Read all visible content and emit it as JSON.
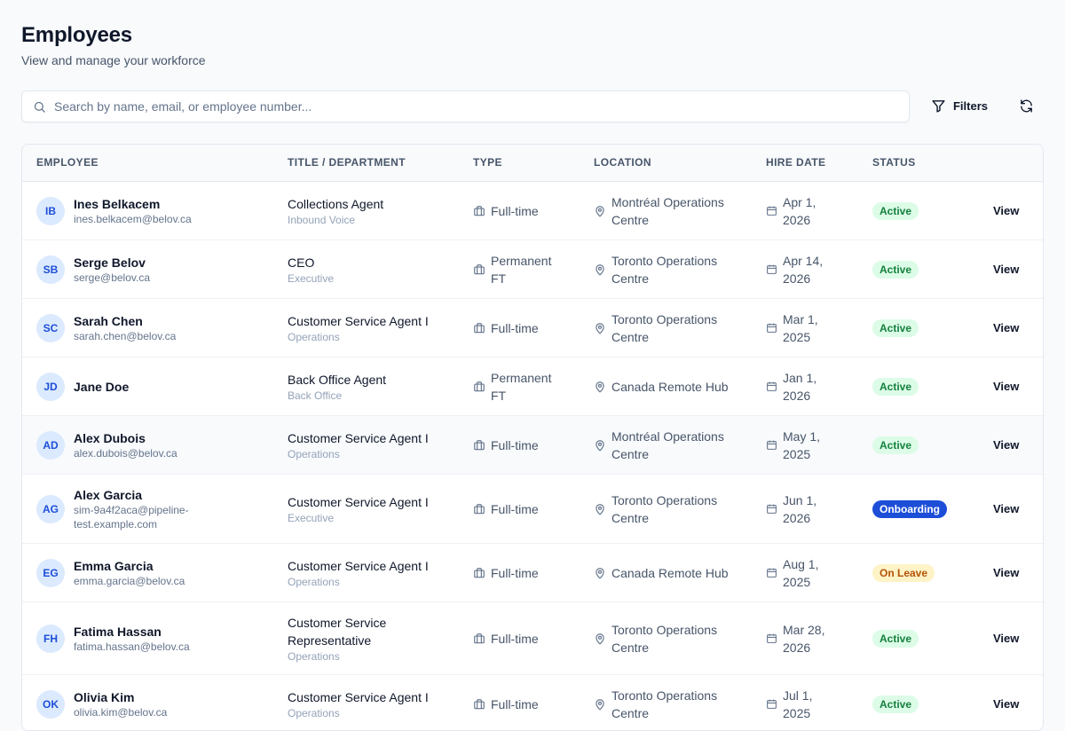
{
  "header": {
    "title": "Employees",
    "subtitle": "View and manage your workforce"
  },
  "toolbar": {
    "search_placeholder": "Search by name, email, or employee number...",
    "search_value": "",
    "filters_label": "Filters"
  },
  "table": {
    "columns": [
      "Employee",
      "Title / Department",
      "Type",
      "Location",
      "Hire Date",
      "Status"
    ],
    "view_label": "View",
    "rows": [
      {
        "initials": "IB",
        "name": "Ines Belkacem",
        "email": "ines.belkacem@belov.ca",
        "title": "Collections Agent",
        "department": "Inbound Voice",
        "type": "Full-time",
        "location": "Montréal Operations Centre",
        "hire_date": "Apr 1, 2026",
        "status": "Active",
        "status_kind": "active"
      },
      {
        "initials": "SB",
        "name": "Serge Belov",
        "email": "serge@belov.ca",
        "title": "CEO",
        "department": "Executive",
        "type": "Permanent FT",
        "location": "Toronto Operations Centre",
        "hire_date": "Apr 14, 2026",
        "status": "Active",
        "status_kind": "active"
      },
      {
        "initials": "SC",
        "name": "Sarah Chen",
        "email": "sarah.chen@belov.ca",
        "title": "Customer Service Agent I",
        "department": "Operations",
        "type": "Full-time",
        "location": "Toronto Operations Centre",
        "hire_date": "Mar 1, 2025",
        "status": "Active",
        "status_kind": "active"
      },
      {
        "initials": "JD",
        "name": "Jane Doe",
        "email": "",
        "title": "Back Office Agent",
        "department": "Back Office",
        "type": "Permanent FT",
        "location": "Canada Remote Hub",
        "hire_date": "Jan 1, 2026",
        "status": "Active",
        "status_kind": "active"
      },
      {
        "initials": "AD",
        "name": "Alex Dubois",
        "email": "alex.dubois@belov.ca",
        "title": "Customer Service Agent I",
        "department": "Operations",
        "type": "Full-time",
        "location": "Montréal Operations Centre",
        "hire_date": "May 1, 2025",
        "status": "Active",
        "status_kind": "active"
      },
      {
        "initials": "AG",
        "name": "Alex Garcia",
        "email": "sim-9a4f2aca@pipeline-test.example.com",
        "title": "Customer Service Agent I",
        "department": "Executive",
        "type": "Full-time",
        "location": "Toronto Operations Centre",
        "hire_date": "Jun 1, 2026",
        "status": "Onboarding",
        "status_kind": "onboarding"
      },
      {
        "initials": "EG",
        "name": "Emma Garcia",
        "email": "emma.garcia@belov.ca",
        "title": "Customer Service Agent I",
        "department": "Operations",
        "type": "Full-time",
        "location": "Canada Remote Hub",
        "hire_date": "Aug 1, 2025",
        "status": "On Leave",
        "status_kind": "leave"
      },
      {
        "initials": "FH",
        "name": "Fatima Hassan",
        "email": "fatima.hassan@belov.ca",
        "title": "Customer Service Representative",
        "department": "Operations",
        "type": "Full-time",
        "location": "Toronto Operations Centre",
        "hire_date": "Mar 28, 2026",
        "status": "Active",
        "status_kind": "active"
      },
      {
        "initials": "OK",
        "name": "Olivia Kim",
        "email": "olivia.kim@belov.ca",
        "title": "Customer Service Agent I",
        "department": "Operations",
        "type": "Full-time",
        "location": "Toronto Operations Centre",
        "hire_date": "Jul 1, 2025",
        "status": "Active",
        "status_kind": "active"
      }
    ]
  }
}
